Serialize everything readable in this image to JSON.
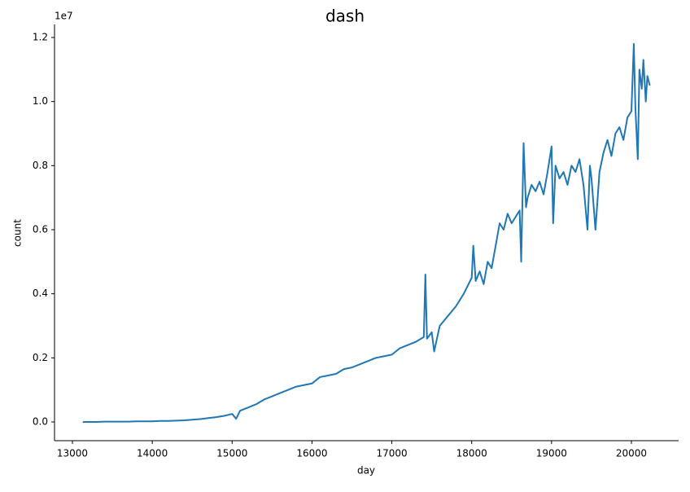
{
  "chart_data": {
    "type": "line",
    "title": "dash",
    "x_label": "day",
    "y_label": "count",
    "y_offset_label": "1e7",
    "x": [
      13130,
      13200,
      13300,
      13400,
      13500,
      13600,
      13700,
      13800,
      13900,
      14000,
      14100,
      14200,
      14300,
      14400,
      14500,
      14600,
      14700,
      14800,
      14900,
      15000,
      15050,
      15100,
      15200,
      15300,
      15400,
      15500,
      15600,
      15700,
      15800,
      15900,
      16000,
      16100,
      16200,
      16300,
      16400,
      16500,
      16600,
      16700,
      16800,
      16900,
      17000,
      17100,
      17200,
      17300,
      17400,
      17420,
      17440,
      17500,
      17530,
      17600,
      17700,
      17800,
      17900,
      18000,
      18020,
      18050,
      18100,
      18150,
      18200,
      18250,
      18300,
      18350,
      18400,
      18450,
      18500,
      18550,
      18600,
      18620,
      18650,
      18680,
      18700,
      18750,
      18800,
      18850,
      18900,
      18950,
      19000,
      19020,
      19050,
      19100,
      19150,
      19200,
      19250,
      19300,
      19350,
      19400,
      19450,
      19480,
      19500,
      19550,
      19600,
      19650,
      19700,
      19750,
      19800,
      19850,
      19900,
      19950,
      20000,
      20030,
      20050,
      20080,
      20100,
      20130,
      20150,
      20180,
      20200,
      20230
    ],
    "series": [
      {
        "name": "count",
        "color": "#1f77b4",
        "values": [
          0.0,
          0.0,
          0.0,
          0.001,
          0.001,
          0.001,
          0.001,
          0.002,
          0.002,
          0.002,
          0.003,
          0.003,
          0.004,
          0.005,
          0.007,
          0.009,
          0.012,
          0.015,
          0.019,
          0.025,
          0.01,
          0.035,
          0.045,
          0.055,
          0.07,
          0.08,
          0.09,
          0.1,
          0.11,
          0.115,
          0.12,
          0.14,
          0.145,
          0.15,
          0.165,
          0.17,
          0.18,
          0.19,
          0.2,
          0.205,
          0.21,
          0.23,
          0.24,
          0.25,
          0.265,
          0.46,
          0.26,
          0.28,
          0.22,
          0.3,
          0.33,
          0.36,
          0.4,
          0.45,
          0.55,
          0.44,
          0.47,
          0.43,
          0.5,
          0.48,
          0.55,
          0.62,
          0.6,
          0.65,
          0.62,
          0.64,
          0.66,
          0.5,
          0.87,
          0.67,
          0.7,
          0.74,
          0.72,
          0.75,
          0.71,
          0.78,
          0.86,
          0.62,
          0.8,
          0.76,
          0.78,
          0.74,
          0.8,
          0.78,
          0.82,
          0.74,
          0.6,
          0.8,
          0.76,
          0.6,
          0.78,
          0.84,
          0.88,
          0.83,
          0.9,
          0.92,
          0.88,
          0.95,
          0.97,
          1.18,
          0.98,
          0.82,
          1.1,
          1.04,
          1.13,
          1.0,
          1.08,
          1.05
        ]
      }
    ],
    "xlim": [
      12776,
      20591
    ],
    "ylim": [
      -0.0585,
      1.2407
    ],
    "xticks": [
      13000,
      14000,
      15000,
      16000,
      17000,
      18000,
      19000,
      20000
    ],
    "yticks": [
      {
        "value": 0,
        "label": "0.0"
      },
      0.2,
      0.4,
      0.6,
      0.8,
      {
        "value": 1,
        "label": "1.0"
      },
      1.2
    ]
  }
}
